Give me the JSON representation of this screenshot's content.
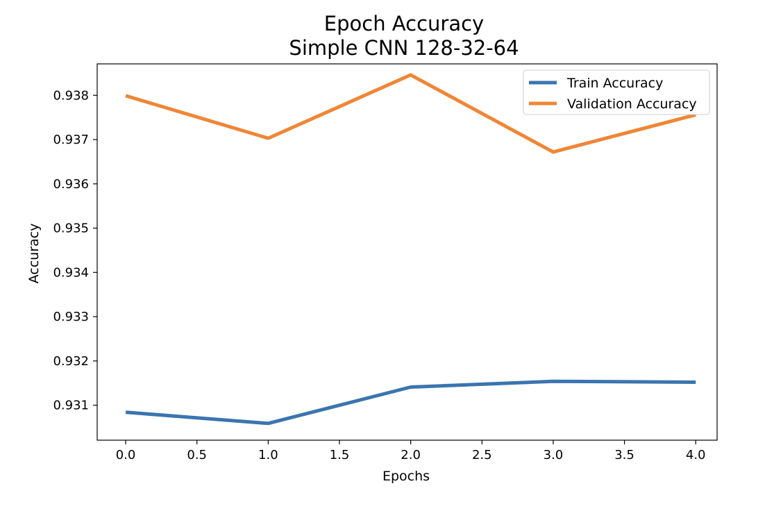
{
  "chart_data": {
    "type": "line",
    "title": "Epoch Accuracy",
    "subtitle": "Simple CNN 128-32-64",
    "xlabel": "Epochs",
    "ylabel": "Accuracy",
    "x": [
      0,
      1,
      2,
      3,
      4
    ],
    "xlim": [
      -0.2,
      4.15
    ],
    "ylim": [
      0.93021,
      0.93871
    ],
    "xticks": [
      0.0,
      0.5,
      1.0,
      1.5,
      2.0,
      2.5,
      3.0,
      3.5,
      4.0
    ],
    "xtick_labels": [
      "0.0",
      "0.5",
      "1.0",
      "1.5",
      "2.0",
      "2.5",
      "3.0",
      "3.5",
      "4.0"
    ],
    "yticks": [
      0.931,
      0.932,
      0.933,
      0.934,
      0.935,
      0.936,
      0.937,
      0.938
    ],
    "ytick_labels": [
      "0.931",
      "0.932",
      "0.933",
      "0.934",
      "0.935",
      "0.936",
      "0.937",
      "0.938"
    ],
    "grid": false,
    "legend_position": "top-right",
    "series": [
      {
        "name": "Train Accuracy",
        "color": "#3a75af",
        "values": [
          0.93084,
          0.93059,
          0.93141,
          0.93154,
          0.93152
        ]
      },
      {
        "name": "Validation Accuracy",
        "color": "#ef8636",
        "values": [
          0.93799,
          0.93703,
          0.93846,
          0.93672,
          0.93756
        ]
      }
    ]
  }
}
